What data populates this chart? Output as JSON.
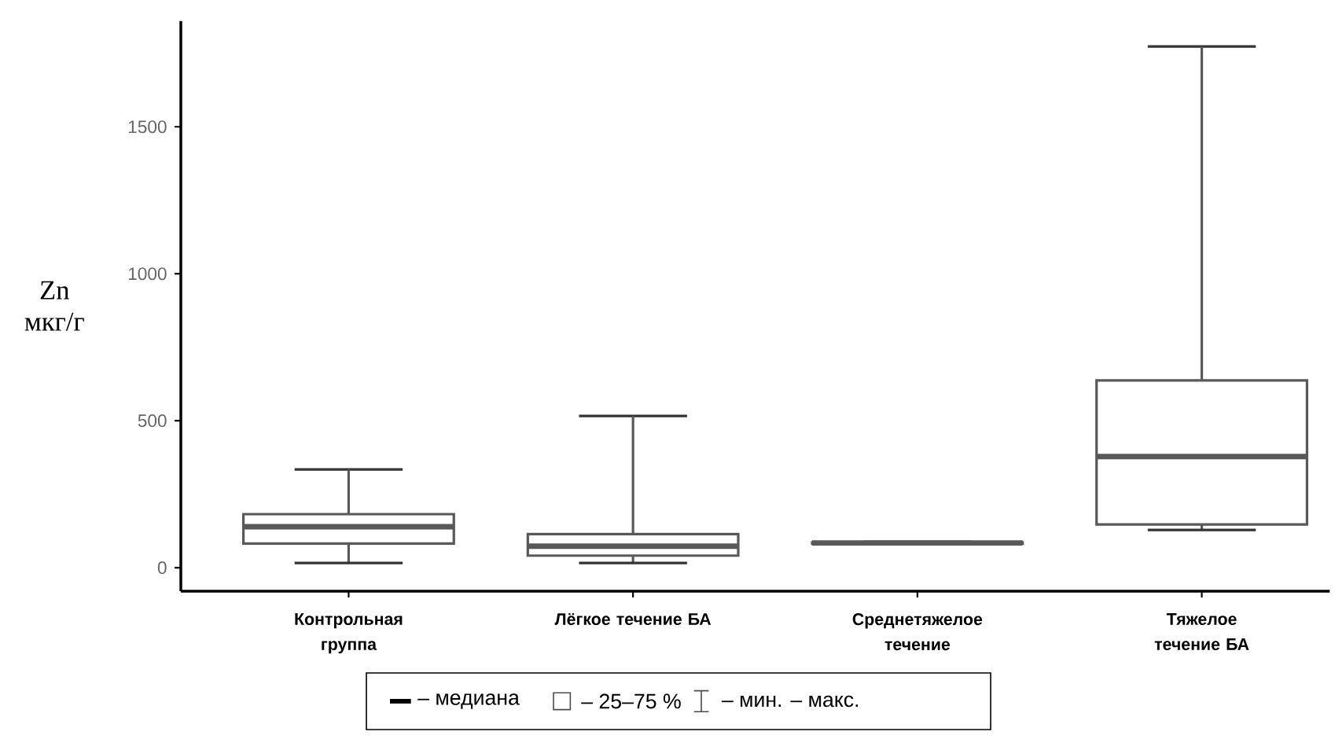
{
  "chart_data": {
    "type": "box",
    "ylabel": "Zn мкг/г",
    "categories": [
      "Контрольная группа",
      "Лёгкое течение БА",
      "Среднетяжелое течение",
      "Тяжелое течение БА"
    ],
    "boxes": [
      {
        "low": 16,
        "q1": 82,
        "median": 139,
        "q3": 182,
        "high": 334
      },
      {
        "low": 16,
        "q1": 41,
        "median": 73,
        "q3": 114,
        "high": 516
      },
      {
        "low": 80,
        "q1": 82,
        "median": 84,
        "q3": 86,
        "high": 88
      },
      {
        "low": 128,
        "q1": 147,
        "median": 378,
        "q3": 637,
        "high": 1773
      }
    ],
    "color": "#595959",
    "ylim": [
      -80,
      1860
    ],
    "yticks": [
      0,
      500,
      1000,
      1500
    ],
    "annotations": [
      "– медиана",
      "– 25–75 %",
      "– мин. – макс."
    ]
  }
}
